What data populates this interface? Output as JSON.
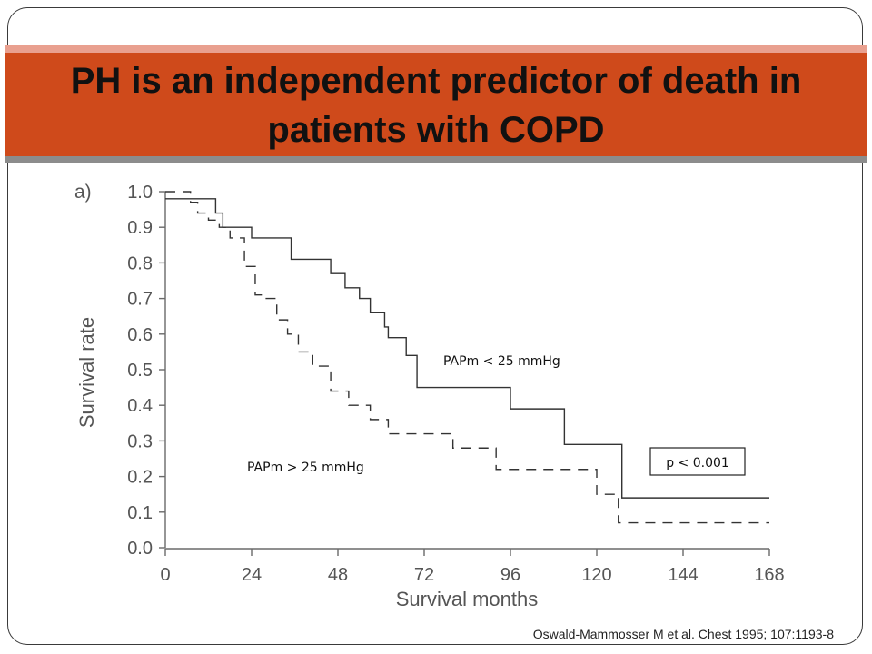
{
  "slide": {
    "title": "PH is an independent predictor of death in patients with COPD",
    "citation": "Oswald-Mammosser M et al. Chest 1995; 107:1193-8",
    "colors": {
      "title_bar": "#cf4a1b",
      "title_bar_top": "#e9a08f",
      "title_bar_bottom": "#8c8c8c"
    }
  },
  "chart_data": {
    "type": "line",
    "step": true,
    "panel_label": "a)",
    "xlabel": "Survival months",
    "ylabel": "Survival rate",
    "xlim": [
      0,
      168
    ],
    "ylim": [
      0,
      1.0
    ],
    "x_ticks": [
      0,
      24,
      48,
      72,
      96,
      120,
      144,
      168
    ],
    "y_ticks": [
      0.0,
      0.1,
      0.2,
      0.3,
      0.4,
      0.5,
      0.6,
      0.7,
      0.8,
      0.9,
      1.0
    ],
    "annotation": "p < 0.001",
    "series": [
      {
        "name": "PAPm < 25 mmHg",
        "style": "solid",
        "color": "#333333",
        "points": [
          [
            0,
            0.98
          ],
          [
            14,
            0.94
          ],
          [
            16,
            0.9
          ],
          [
            24,
            0.87
          ],
          [
            35,
            0.81
          ],
          [
            46,
            0.77
          ],
          [
            50,
            0.73
          ],
          [
            54,
            0.7
          ],
          [
            57,
            0.66
          ],
          [
            61,
            0.62
          ],
          [
            62,
            0.59
          ],
          [
            67,
            0.54
          ],
          [
            70,
            0.45
          ],
          [
            96,
            0.39
          ],
          [
            111,
            0.29
          ],
          [
            127,
            0.14
          ],
          [
            168,
            0.14
          ]
        ]
      },
      {
        "name": "PAPm > 25 mmHg",
        "style": "dashed",
        "color": "#333333",
        "points": [
          [
            0,
            1.0
          ],
          [
            7,
            0.97
          ],
          [
            9,
            0.94
          ],
          [
            12,
            0.92
          ],
          [
            15,
            0.9
          ],
          [
            18,
            0.87
          ],
          [
            22,
            0.79
          ],
          [
            25,
            0.71
          ],
          [
            27,
            0.7
          ],
          [
            31,
            0.64
          ],
          [
            34,
            0.6
          ],
          [
            37,
            0.55
          ],
          [
            41,
            0.51
          ],
          [
            46,
            0.44
          ],
          [
            51,
            0.4
          ],
          [
            57,
            0.36
          ],
          [
            62,
            0.32
          ],
          [
            80,
            0.28
          ],
          [
            92,
            0.22
          ],
          [
            120,
            0.15
          ],
          [
            126,
            0.07
          ],
          [
            168,
            0.07
          ]
        ]
      }
    ]
  }
}
